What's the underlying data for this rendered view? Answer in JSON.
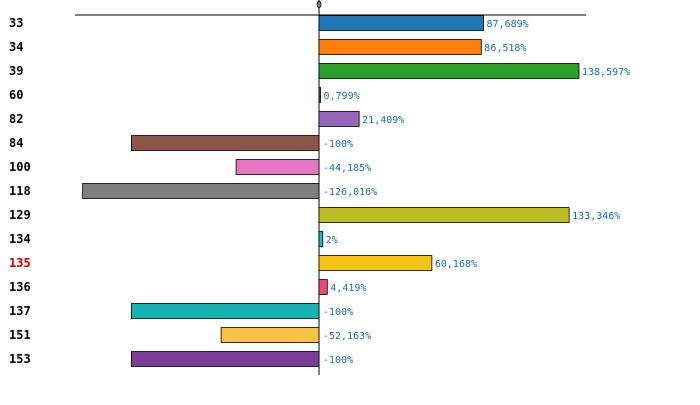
{
  "chart_data": {
    "type": "bar",
    "orientation": "horizontal",
    "zero_tick_label": "0",
    "categories": [
      "33",
      "34",
      "39",
      "60",
      "82",
      "84",
      "100",
      "118",
      "129",
      "134",
      "135",
      "136",
      "137",
      "151",
      "153"
    ],
    "values": [
      87.689,
      86.518,
      138.597,
      0.799,
      21.409,
      -100,
      -44.185,
      -126.016,
      133.346,
      2,
      60.168,
      4.419,
      -100,
      -52.163,
      -100
    ],
    "value_labels": [
      "87,689%",
      "86,518%",
      "138,597%",
      "0,799%",
      "21,409%",
      "-100%",
      "-44,185%",
      "-126,016%",
      "133,346%",
      "2%",
      "60,168%",
      "4,419%",
      "-100%",
      "-52,163%",
      "-100%"
    ],
    "bar_colors": [
      "#1f77b4",
      "#ff7f0e",
      "#2ca02c",
      "#d62728",
      "#9467bd",
      "#8c564b",
      "#e377c2",
      "#7f7f7f",
      "#bcbd22",
      "#17becf",
      "#f5c518",
      "#f0467a",
      "#17b3b0",
      "#f9c04a",
      "#7b3f98"
    ],
    "highlight_category": "135",
    "highlight_color": "#cc0000",
    "label_color": "#1a6fa8",
    "xlim": [
      -126.016,
      141.5
    ],
    "grid": false,
    "legend": "none"
  }
}
